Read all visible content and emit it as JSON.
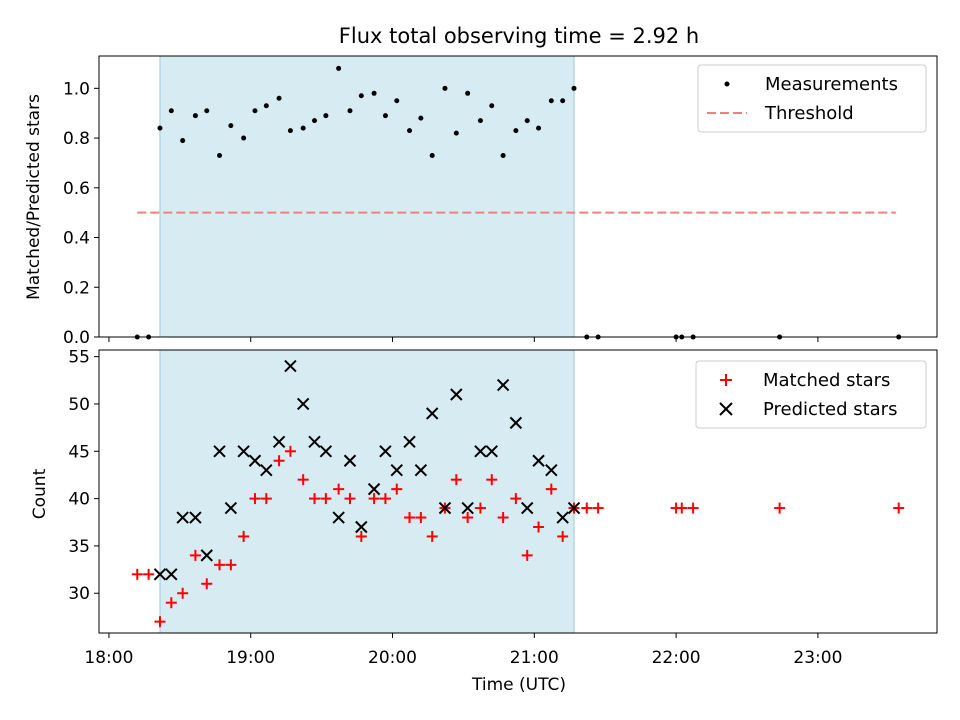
{
  "chart_data": [
    {
      "type": "scatter",
      "title": "Flux total observing time = 2.92 h",
      "ylabel": "Matched/Predicted stars",
      "ylim": [
        0,
        1.13
      ],
      "yticks": [
        0.0,
        0.2,
        0.4,
        0.6,
        0.8,
        1.0
      ],
      "ytick_labels": [
        "0.0",
        "0.2",
        "0.4",
        "0.6",
        "0.8",
        "1.0"
      ],
      "shaded_span": {
        "start": 18.36,
        "end": 21.28,
        "color": "#add8e6"
      },
      "threshold": {
        "value": 0.5,
        "x_start": 18.2,
        "x_end": 23.55,
        "color": "#f08080"
      },
      "legend": [
        "Measurements",
        "Threshold"
      ],
      "series": [
        {
          "name": "Measurements",
          "x": [
            18.2,
            18.28,
            18.36,
            18.44,
            18.52,
            18.61,
            18.69,
            18.78,
            18.86,
            18.95,
            19.03,
            19.11,
            19.2,
            19.28,
            19.37,
            19.45,
            19.53,
            19.62,
            19.7,
            19.78,
            19.87,
            19.95,
            20.03,
            20.12,
            20.2,
            20.28,
            20.37,
            20.45,
            20.53,
            20.62,
            20.7,
            20.78,
            20.87,
            20.95,
            21.03,
            21.12,
            21.2,
            21.28,
            21.37,
            21.45,
            22.0,
            22.04,
            22.12,
            22.73,
            23.57
          ],
          "values": [
            0.0,
            0.0,
            0.84,
            0.91,
            0.79,
            0.89,
            0.91,
            0.73,
            0.85,
            0.8,
            0.91,
            0.93,
            0.96,
            0.83,
            0.84,
            0.87,
            0.89,
            1.08,
            0.91,
            0.97,
            0.98,
            0.89,
            0.95,
            0.83,
            0.88,
            0.73,
            1.0,
            0.82,
            0.98,
            0.87,
            0.93,
            0.73,
            0.83,
            0.87,
            0.84,
            0.95,
            0.95,
            1.0,
            0.0,
            0.0,
            0.0,
            0.0,
            0.0,
            0.0,
            0.0
          ]
        }
      ]
    },
    {
      "type": "scatter",
      "xlabel": "Time (UTC)",
      "ylabel": "Count",
      "ylim": [
        25.8,
        55.7
      ],
      "yticks": [
        30,
        35,
        40,
        45,
        50,
        55
      ],
      "ytick_labels": [
        "30",
        "35",
        "40",
        "45",
        "50",
        "55"
      ],
      "xlim": [
        17.93,
        23.84
      ],
      "xticks": [
        18,
        19,
        20,
        21,
        22,
        23
      ],
      "xtick_labels": [
        "18:00",
        "19:00",
        "20:00",
        "21:00",
        "22:00",
        "23:00"
      ],
      "shaded_span": {
        "start": 18.36,
        "end": 21.28,
        "color": "#add8e6"
      },
      "legend": [
        "Matched stars",
        "Predicted stars"
      ],
      "series": [
        {
          "name": "Matched stars",
          "color": "#ff0000",
          "x": [
            18.2,
            18.28,
            18.36,
            18.44,
            18.52,
            18.61,
            18.69,
            18.78,
            18.86,
            18.95,
            19.03,
            19.11,
            19.2,
            19.28,
            19.37,
            19.45,
            19.53,
            19.62,
            19.7,
            19.78,
            19.87,
            19.95,
            20.03,
            20.12,
            20.2,
            20.28,
            20.37,
            20.45,
            20.53,
            20.62,
            20.7,
            20.78,
            20.87,
            20.95,
            21.03,
            21.12,
            21.2,
            21.28,
            21.37,
            21.45,
            22.0,
            22.04,
            22.12,
            22.73,
            23.57
          ],
          "values": [
            32,
            32,
            27,
            29,
            30,
            34,
            31,
            33,
            33,
            36,
            40,
            40,
            44,
            45,
            42,
            40,
            40,
            41,
            40,
            36,
            40,
            40,
            41,
            38,
            38,
            36,
            39,
            42,
            38,
            39,
            42,
            38,
            40,
            34,
            37,
            41,
            36,
            39,
            39,
            39,
            39,
            39,
            39,
            39,
            39
          ]
        },
        {
          "name": "Predicted stars",
          "color": "#000000",
          "x": [
            18.36,
            18.44,
            18.52,
            18.61,
            18.69,
            18.78,
            18.86,
            18.95,
            19.03,
            19.11,
            19.2,
            19.28,
            19.37,
            19.45,
            19.53,
            19.62,
            19.7,
            19.78,
            19.87,
            19.95,
            20.03,
            20.12,
            20.2,
            20.28,
            20.37,
            20.45,
            20.53,
            20.62,
            20.7,
            20.78,
            20.87,
            20.95,
            21.03,
            21.12,
            21.2,
            21.28
          ],
          "values": [
            32,
            32,
            38,
            38,
            34,
            45,
            39,
            45,
            44,
            43,
            46,
            54,
            50,
            46,
            45,
            38,
            44,
            37,
            41,
            45,
            43,
            46,
            43,
            49,
            39,
            51,
            39,
            45,
            45,
            52,
            48,
            39,
            44,
            43,
            38,
            39
          ]
        }
      ]
    }
  ]
}
